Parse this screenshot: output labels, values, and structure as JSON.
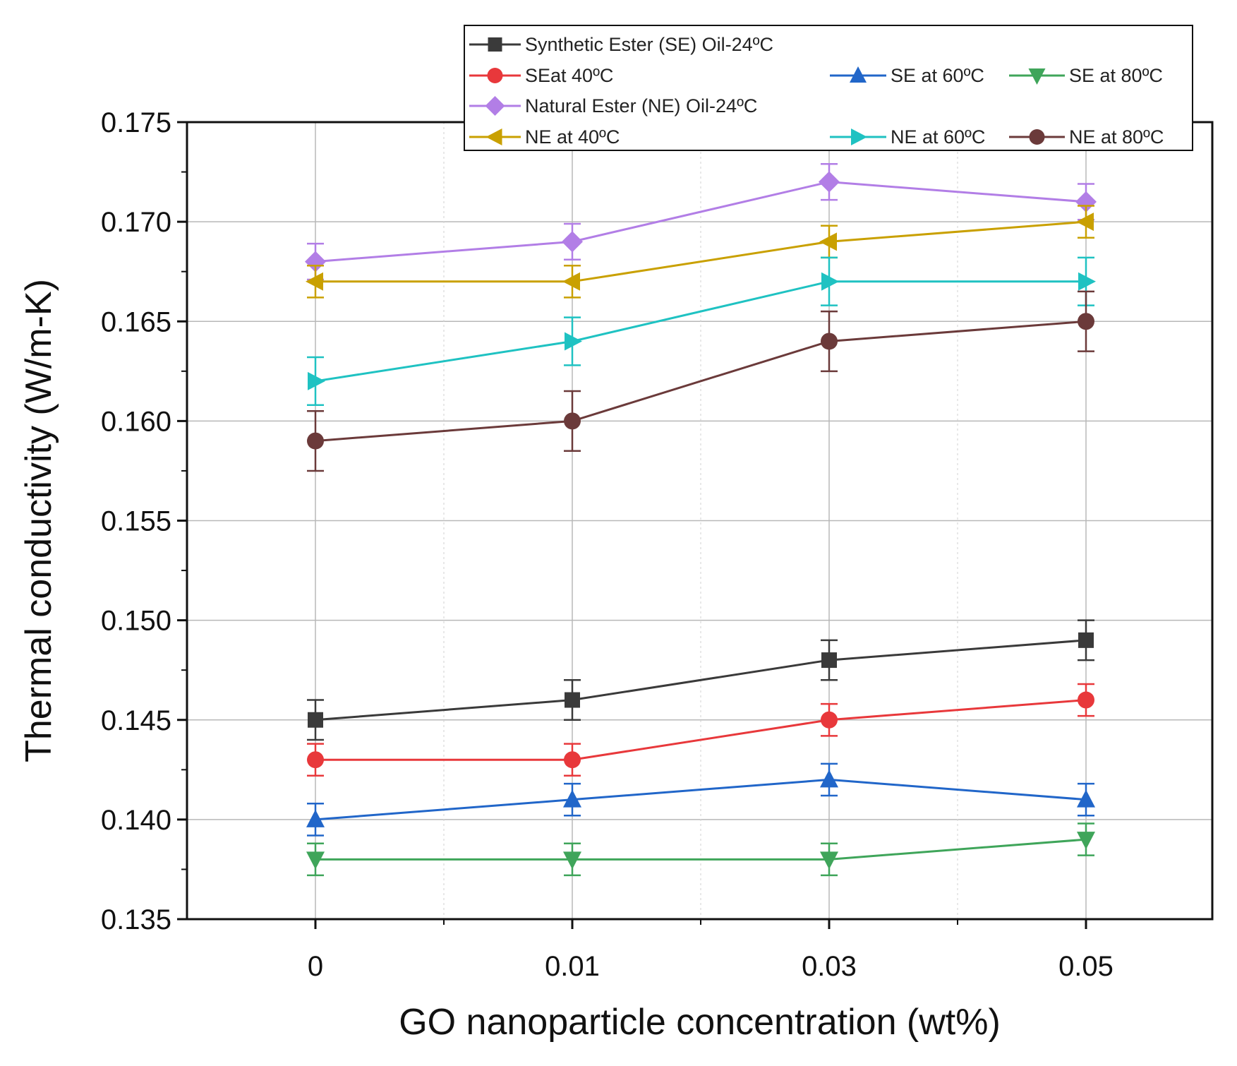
{
  "chart_data": {
    "type": "line",
    "title": "",
    "xlabel": "GO nanoparticle concentration (wt%)",
    "ylabel": "Thermal conductivity (W/m-K)",
    "categories": [
      "0",
      "0.01",
      "0.03",
      "0.05"
    ],
    "ylim": [
      0.135,
      0.175
    ],
    "yticks": [
      "0.135",
      "0.140",
      "0.145",
      "0.150",
      "0.155",
      "0.160",
      "0.165",
      "0.170",
      "0.175"
    ],
    "grid": true,
    "legend_position": "top-right",
    "series": [
      {
        "name": "Synthetic Ester (SE) Oil-24ºC",
        "color": "#3a3a3a",
        "marker": "square",
        "values": [
          0.145,
          0.146,
          0.148,
          0.149
        ],
        "errors": [
          0.001,
          0.001,
          0.001,
          0.001
        ]
      },
      {
        "name": "SEat 40ºC",
        "color": "#e8383b",
        "marker": "circle",
        "values": [
          0.143,
          0.143,
          0.145,
          0.146
        ],
        "errors": [
          0.0008,
          0.0008,
          0.0008,
          0.0008
        ]
      },
      {
        "name": "SE at 60ºC",
        "color": "#2166c9",
        "marker": "triangle-up",
        "values": [
          0.14,
          0.141,
          0.142,
          0.141
        ],
        "errors": [
          0.0008,
          0.0008,
          0.0008,
          0.0008
        ]
      },
      {
        "name": "SE at 80ºC",
        "color": "#3fa55a",
        "marker": "triangle-down",
        "values": [
          0.138,
          0.138,
          0.138,
          0.139
        ],
        "errors": [
          0.0008,
          0.0008,
          0.0008,
          0.0008
        ]
      },
      {
        "name": "Natural Ester (NE) Oil-24ºC",
        "color": "#b27ee6",
        "marker": "diamond",
        "values": [
          0.168,
          0.169,
          0.172,
          0.171
        ],
        "errors": [
          0.0009,
          0.0009,
          0.0009,
          0.0009
        ]
      },
      {
        "name": "NE at 40ºC",
        "color": "#c9a000",
        "marker": "triangle-left",
        "values": [
          0.167,
          0.167,
          0.169,
          0.17
        ],
        "errors": [
          0.0008,
          0.0008,
          0.0008,
          0.0008
        ]
      },
      {
        "name": "NE at 60ºC",
        "color": "#1fc2c2",
        "marker": "triangle-right",
        "values": [
          0.162,
          0.164,
          0.167,
          0.167
        ],
        "errors": [
          0.0012,
          0.0012,
          0.0012,
          0.0012
        ]
      },
      {
        "name": "NE at 80ºC",
        "color": "#6b3a3a",
        "marker": "circle",
        "values": [
          0.159,
          0.16,
          0.164,
          0.165
        ],
        "errors": [
          0.0015,
          0.0015,
          0.0015,
          0.0015
        ]
      }
    ]
  }
}
